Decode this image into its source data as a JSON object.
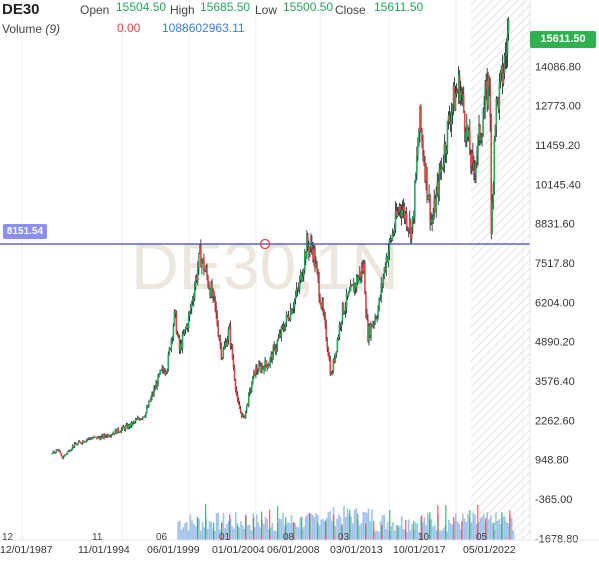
{
  "legend": {
    "symbol": "DE30",
    "open_label": "Open",
    "open": "15504.50",
    "high_label": "High",
    "high": "15685.50",
    "low_label": "Low",
    "low": "15500.50",
    "close_label": "Close",
    "close": "15611.50",
    "volume_label": "Volume",
    "volume_param": "(9)",
    "volume_change": "0.00",
    "volume_value": "1088602963.11"
  },
  "price_tag": "15611.50",
  "hline_tag": "8151.54",
  "watermark": "DE30,1N",
  "colors": {
    "up": "#26a65b",
    "down": "#e04545",
    "hline": "#3f46b8",
    "volume": "#8fb6e6",
    "price_tag": "#2db24f",
    "hline_tag": "#8a8ff0"
  },
  "chart_data": {
    "type": "candlestick",
    "title": "DE30",
    "y_axis": {
      "position": "right",
      "ticks": [
        15400.0,
        14086.8,
        12773.0,
        11459.2,
        10145.4,
        8831.6,
        7517.8,
        6204.0,
        4890.2,
        3576.4,
        2262.6,
        948.8,
        -365.0,
        -1678.8
      ],
      "tick_labels": [
        "",
        "14086.80",
        "12773.00",
        "11459.20",
        "10145.40",
        "8831.60",
        "7517.80",
        "6204.00",
        "4890.20",
        "3576.40",
        "2262.60",
        "948.80",
        "-365.00",
        "-1678.80"
      ],
      "range": [
        -2300,
        16300
      ]
    },
    "x_axis": {
      "top_row": [
        "12",
        "11",
        "06",
        "01",
        "08",
        "03",
        "10",
        "05"
      ],
      "bottom_row": [
        "12/01/1987",
        "11/01/1994",
        "06/01/1999",
        "01/01/2004",
        "06/01/2008",
        "03/01/2013",
        "10/01/2017",
        "05/01/2022"
      ],
      "range": [
        "1986-06",
        "2022-11"
      ]
    },
    "horizontal_line": 8151.54,
    "last_close": 15611.5,
    "price_path": [
      {
        "x": "1990-01",
        "y": 1150
      },
      {
        "x": "1990-06",
        "y": 1300
      },
      {
        "x": "1990-09",
        "y": 1000
      },
      {
        "x": "1991-06",
        "y": 1400
      },
      {
        "x": "1992-06",
        "y": 1650
      },
      {
        "x": "1993-06",
        "y": 1700
      },
      {
        "x": "1994-06",
        "y": 1900
      },
      {
        "x": "1995-06",
        "y": 2100
      },
      {
        "x": "1996-06",
        "y": 2500
      },
      {
        "x": "1997-06",
        "y": 3800
      },
      {
        "x": "1997-12",
        "y": 4100
      },
      {
        "x": "1998-06",
        "y": 5800
      },
      {
        "x": "1998-10",
        "y": 4600
      },
      {
        "x": "1999-06",
        "y": 5700
      },
      {
        "x": "2000-03",
        "y": 7800
      },
      {
        "x": "2000-09",
        "y": 7000
      },
      {
        "x": "2001-03",
        "y": 6100
      },
      {
        "x": "2001-09",
        "y": 4400
      },
      {
        "x": "2002-03",
        "y": 5300
      },
      {
        "x": "2002-10",
        "y": 2800
      },
      {
        "x": "2003-03",
        "y": 2300
      },
      {
        "x": "2003-12",
        "y": 3900
      },
      {
        "x": "2004-12",
        "y": 4200
      },
      {
        "x": "2005-12",
        "y": 5400
      },
      {
        "x": "2006-12",
        "y": 6600
      },
      {
        "x": "2007-07",
        "y": 8100
      },
      {
        "x": "2007-12",
        "y": 8000
      },
      {
        "x": "2008-06",
        "y": 6400
      },
      {
        "x": "2008-12",
        "y": 4800
      },
      {
        "x": "2009-03",
        "y": 3700
      },
      {
        "x": "2009-12",
        "y": 5900
      },
      {
        "x": "2010-12",
        "y": 6900
      },
      {
        "x": "2011-06",
        "y": 7400
      },
      {
        "x": "2011-09",
        "y": 5100
      },
      {
        "x": "2012-06",
        "y": 6000
      },
      {
        "x": "2012-12",
        "y": 7600
      },
      {
        "x": "2013-12",
        "y": 9500
      },
      {
        "x": "2014-10",
        "y": 8600
      },
      {
        "x": "2015-04",
        "y": 12300
      },
      {
        "x": "2016-02",
        "y": 8800
      },
      {
        "x": "2017-06",
        "y": 12700
      },
      {
        "x": "2018-01",
        "y": 13500
      },
      {
        "x": "2018-12",
        "y": 10500
      },
      {
        "x": "2019-12",
        "y": 13300
      },
      {
        "x": "2020-02",
        "y": 13800
      },
      {
        "x": "2020-03",
        "y": 8200
      },
      {
        "x": "2020-06",
        "y": 12400
      },
      {
        "x": "2020-12",
        "y": 13700
      },
      {
        "x": "2021-03",
        "y": 14500
      },
      {
        "x": "2021-06",
        "y": 15600
      }
    ]
  }
}
